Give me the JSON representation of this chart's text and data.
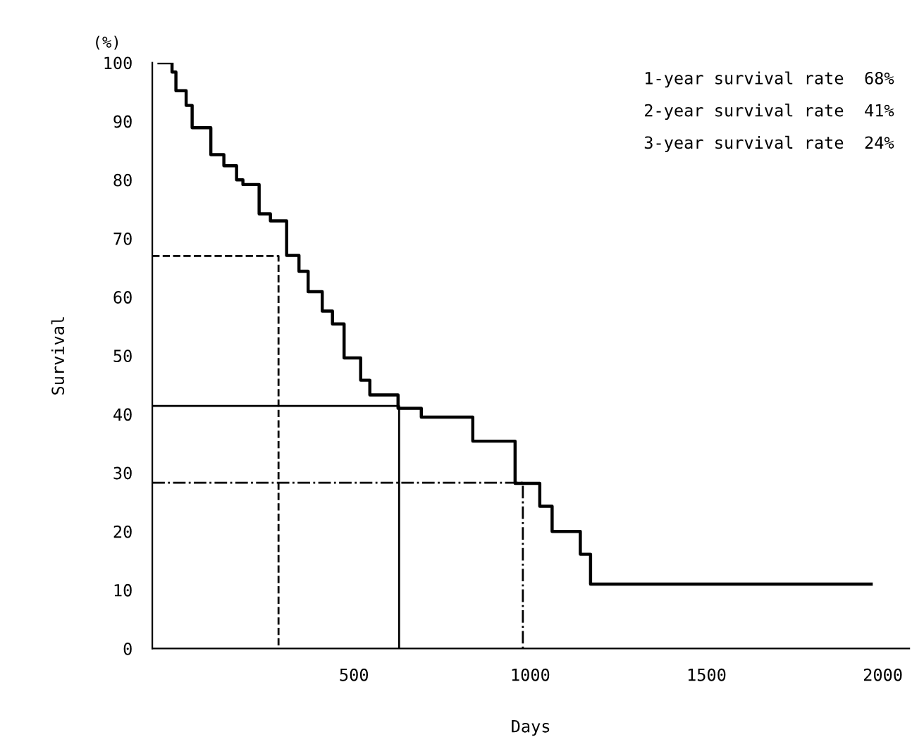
{
  "chart_data": {
    "type": "step",
    "xlabel": "Days",
    "ylabel": "Survival",
    "annotations": [
      "(%)",
      "1-year survival rate  68%",
      "2-year survival rate  41%",
      "3-year survival rate  24%"
    ],
    "xlim": [
      -72,
      2075
    ],
    "xticks": [
      500,
      1000,
      1500,
      2000
    ],
    "ylim": [
      0,
      100
    ],
    "yticks": [
      0,
      10,
      20,
      30,
      40,
      50,
      60,
      70,
      80,
      90,
      100
    ],
    "grid": false,
    "legend": false,
    "marker": "none",
    "series": [
      {
        "color": "#000000",
        "line_style": "solid",
        "x": [
          -53,
          -16,
          -5,
          24,
          41,
          94,
          131,
          167,
          185,
          231,
          263,
          309,
          344,
          370,
          410,
          439,
          472,
          519,
          545,
          625,
          691,
          837,
          957,
          1027,
          1062,
          1142,
          1171,
          1967
        ],
        "values": [
          100,
          98.4,
          95.2,
          92.7,
          88.9,
          84.3,
          82.4,
          80,
          79.2,
          74.2,
          73,
          67.1,
          64.4,
          60.9,
          57.6,
          55.4,
          49.6,
          45.8,
          43.3,
          41,
          39.5,
          35.4,
          28.2,
          24.3,
          20,
          16.1,
          11,
          11
        ]
      },
      {
        "type": "line",
        "color": "#000000",
        "line_style": "dashed",
        "x": [
          -72,
          286,
          286
        ],
        "values": [
          67,
          67,
          0
        ]
      },
      {
        "type": "line",
        "color": "#000000",
        "line_style": "solid",
        "x": [
          -72,
          628,
          628
        ],
        "values": [
          41.4,
          41.4,
          0
        ]
      },
      {
        "type": "line",
        "color": "#000000",
        "line_style": "dashdot",
        "x": [
          -72,
          979,
          979
        ],
        "values": [
          28.3,
          28.3,
          0
        ]
      }
    ]
  }
}
